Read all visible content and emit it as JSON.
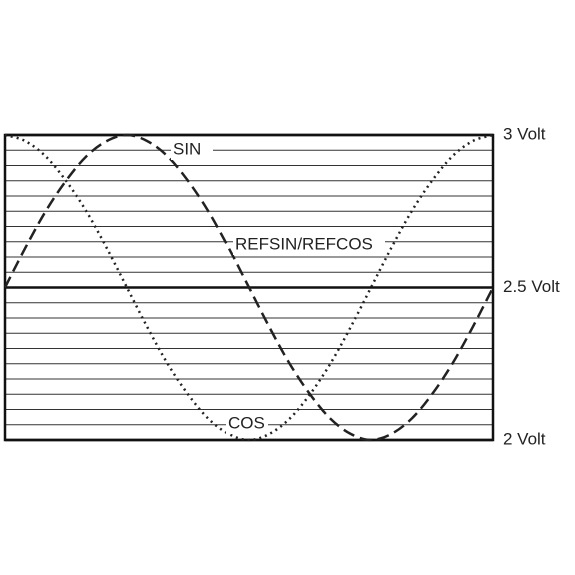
{
  "chart_data": {
    "type": "line",
    "x": [
      0,
      15,
      30,
      45,
      60,
      75,
      90,
      105,
      120,
      135,
      150,
      165,
      180,
      195,
      210,
      225,
      240,
      255,
      270,
      285,
      300,
      315,
      330,
      345,
      360
    ],
    "xlim": [
      0,
      360
    ],
    "ylim": [
      2,
      3
    ],
    "yticks": [
      {
        "value": 2,
        "label": "2 Volt"
      },
      {
        "value": 2.5,
        "label": "2.5 Volt"
      },
      {
        "value": 3,
        "label": "3 Volt"
      }
    ],
    "ygrid": [
      2.05,
      2.1,
      2.15,
      2.2,
      2.25,
      2.3,
      2.35,
      2.4,
      2.45,
      2.55,
      2.6,
      2.65,
      2.7,
      2.75,
      2.8,
      2.85,
      2.9,
      2.95
    ],
    "series": [
      {
        "name": "SIN",
        "color": "#222222",
        "dash": "dashed",
        "values": [
          2.5,
          2.63,
          2.75,
          2.85,
          2.93,
          2.98,
          3,
          2.98,
          2.93,
          2.85,
          2.75,
          2.63,
          2.5,
          2.37,
          2.25,
          2.15,
          2.07,
          2.02,
          2,
          2.02,
          2.07,
          2.15,
          2.25,
          2.37,
          2.5
        ]
      },
      {
        "name": "COS",
        "color": "#222222",
        "dash": "dotted",
        "values": [
          3,
          2.98,
          2.93,
          2.85,
          2.75,
          2.63,
          2.5,
          2.37,
          2.25,
          2.15,
          2.07,
          2.02,
          2,
          2.02,
          2.07,
          2.15,
          2.25,
          2.37,
          2.5,
          2.63,
          2.75,
          2.85,
          2.93,
          2.98,
          3
        ]
      }
    ],
    "annotations": [
      "REFSIN/REFCOS"
    ]
  }
}
